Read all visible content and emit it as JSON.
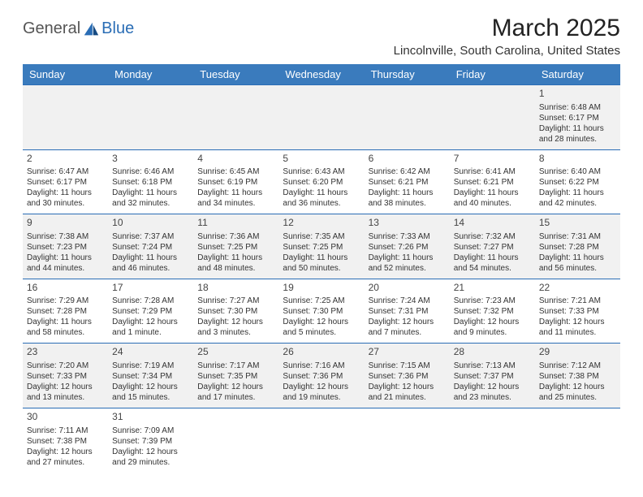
{
  "brand": {
    "part1": "General",
    "part2": "Blue"
  },
  "title": "March 2025",
  "location": "Lincolnville, South Carolina, United States",
  "colors": {
    "header_bg": "#3a7bbd",
    "header_text": "#ffffff",
    "divider": "#2a6db5",
    "alt_row_bg": "#f1f1f1",
    "brand_accent": "#2a6db5",
    "text": "#333333"
  },
  "typography": {
    "title_fontsize": 30,
    "location_fontsize": 15,
    "dayhead_fontsize": 13,
    "cell_fontsize": 10
  },
  "dayNames": [
    "Sunday",
    "Monday",
    "Tuesday",
    "Wednesday",
    "Thursday",
    "Friday",
    "Saturday"
  ],
  "weeks": [
    [
      null,
      null,
      null,
      null,
      null,
      null,
      {
        "d": "1",
        "sr": "Sunrise: 6:48 AM",
        "ss": "Sunset: 6:17 PM",
        "dl1": "Daylight: 11 hours",
        "dl2": "and 28 minutes."
      }
    ],
    [
      {
        "d": "2",
        "sr": "Sunrise: 6:47 AM",
        "ss": "Sunset: 6:17 PM",
        "dl1": "Daylight: 11 hours",
        "dl2": "and 30 minutes."
      },
      {
        "d": "3",
        "sr": "Sunrise: 6:46 AM",
        "ss": "Sunset: 6:18 PM",
        "dl1": "Daylight: 11 hours",
        "dl2": "and 32 minutes."
      },
      {
        "d": "4",
        "sr": "Sunrise: 6:45 AM",
        "ss": "Sunset: 6:19 PM",
        "dl1": "Daylight: 11 hours",
        "dl2": "and 34 minutes."
      },
      {
        "d": "5",
        "sr": "Sunrise: 6:43 AM",
        "ss": "Sunset: 6:20 PM",
        "dl1": "Daylight: 11 hours",
        "dl2": "and 36 minutes."
      },
      {
        "d": "6",
        "sr": "Sunrise: 6:42 AM",
        "ss": "Sunset: 6:21 PM",
        "dl1": "Daylight: 11 hours",
        "dl2": "and 38 minutes."
      },
      {
        "d": "7",
        "sr": "Sunrise: 6:41 AM",
        "ss": "Sunset: 6:21 PM",
        "dl1": "Daylight: 11 hours",
        "dl2": "and 40 minutes."
      },
      {
        "d": "8",
        "sr": "Sunrise: 6:40 AM",
        "ss": "Sunset: 6:22 PM",
        "dl1": "Daylight: 11 hours",
        "dl2": "and 42 minutes."
      }
    ],
    [
      {
        "d": "9",
        "sr": "Sunrise: 7:38 AM",
        "ss": "Sunset: 7:23 PM",
        "dl1": "Daylight: 11 hours",
        "dl2": "and 44 minutes."
      },
      {
        "d": "10",
        "sr": "Sunrise: 7:37 AM",
        "ss": "Sunset: 7:24 PM",
        "dl1": "Daylight: 11 hours",
        "dl2": "and 46 minutes."
      },
      {
        "d": "11",
        "sr": "Sunrise: 7:36 AM",
        "ss": "Sunset: 7:25 PM",
        "dl1": "Daylight: 11 hours",
        "dl2": "and 48 minutes."
      },
      {
        "d": "12",
        "sr": "Sunrise: 7:35 AM",
        "ss": "Sunset: 7:25 PM",
        "dl1": "Daylight: 11 hours",
        "dl2": "and 50 minutes."
      },
      {
        "d": "13",
        "sr": "Sunrise: 7:33 AM",
        "ss": "Sunset: 7:26 PM",
        "dl1": "Daylight: 11 hours",
        "dl2": "and 52 minutes."
      },
      {
        "d": "14",
        "sr": "Sunrise: 7:32 AM",
        "ss": "Sunset: 7:27 PM",
        "dl1": "Daylight: 11 hours",
        "dl2": "and 54 minutes."
      },
      {
        "d": "15",
        "sr": "Sunrise: 7:31 AM",
        "ss": "Sunset: 7:28 PM",
        "dl1": "Daylight: 11 hours",
        "dl2": "and 56 minutes."
      }
    ],
    [
      {
        "d": "16",
        "sr": "Sunrise: 7:29 AM",
        "ss": "Sunset: 7:28 PM",
        "dl1": "Daylight: 11 hours",
        "dl2": "and 58 minutes."
      },
      {
        "d": "17",
        "sr": "Sunrise: 7:28 AM",
        "ss": "Sunset: 7:29 PM",
        "dl1": "Daylight: 12 hours",
        "dl2": "and 1 minute."
      },
      {
        "d": "18",
        "sr": "Sunrise: 7:27 AM",
        "ss": "Sunset: 7:30 PM",
        "dl1": "Daylight: 12 hours",
        "dl2": "and 3 minutes."
      },
      {
        "d": "19",
        "sr": "Sunrise: 7:25 AM",
        "ss": "Sunset: 7:30 PM",
        "dl1": "Daylight: 12 hours",
        "dl2": "and 5 minutes."
      },
      {
        "d": "20",
        "sr": "Sunrise: 7:24 AM",
        "ss": "Sunset: 7:31 PM",
        "dl1": "Daylight: 12 hours",
        "dl2": "and 7 minutes."
      },
      {
        "d": "21",
        "sr": "Sunrise: 7:23 AM",
        "ss": "Sunset: 7:32 PM",
        "dl1": "Daylight: 12 hours",
        "dl2": "and 9 minutes."
      },
      {
        "d": "22",
        "sr": "Sunrise: 7:21 AM",
        "ss": "Sunset: 7:33 PM",
        "dl1": "Daylight: 12 hours",
        "dl2": "and 11 minutes."
      }
    ],
    [
      {
        "d": "23",
        "sr": "Sunrise: 7:20 AM",
        "ss": "Sunset: 7:33 PM",
        "dl1": "Daylight: 12 hours",
        "dl2": "and 13 minutes."
      },
      {
        "d": "24",
        "sr": "Sunrise: 7:19 AM",
        "ss": "Sunset: 7:34 PM",
        "dl1": "Daylight: 12 hours",
        "dl2": "and 15 minutes."
      },
      {
        "d": "25",
        "sr": "Sunrise: 7:17 AM",
        "ss": "Sunset: 7:35 PM",
        "dl1": "Daylight: 12 hours",
        "dl2": "and 17 minutes."
      },
      {
        "d": "26",
        "sr": "Sunrise: 7:16 AM",
        "ss": "Sunset: 7:36 PM",
        "dl1": "Daylight: 12 hours",
        "dl2": "and 19 minutes."
      },
      {
        "d": "27",
        "sr": "Sunrise: 7:15 AM",
        "ss": "Sunset: 7:36 PM",
        "dl1": "Daylight: 12 hours",
        "dl2": "and 21 minutes."
      },
      {
        "d": "28",
        "sr": "Sunrise: 7:13 AM",
        "ss": "Sunset: 7:37 PM",
        "dl1": "Daylight: 12 hours",
        "dl2": "and 23 minutes."
      },
      {
        "d": "29",
        "sr": "Sunrise: 7:12 AM",
        "ss": "Sunset: 7:38 PM",
        "dl1": "Daylight: 12 hours",
        "dl2": "and 25 minutes."
      }
    ],
    [
      {
        "d": "30",
        "sr": "Sunrise: 7:11 AM",
        "ss": "Sunset: 7:38 PM",
        "dl1": "Daylight: 12 hours",
        "dl2": "and 27 minutes."
      },
      {
        "d": "31",
        "sr": "Sunrise: 7:09 AM",
        "ss": "Sunset: 7:39 PM",
        "dl1": "Daylight: 12 hours",
        "dl2": "and 29 minutes."
      },
      null,
      null,
      null,
      null,
      null
    ]
  ]
}
